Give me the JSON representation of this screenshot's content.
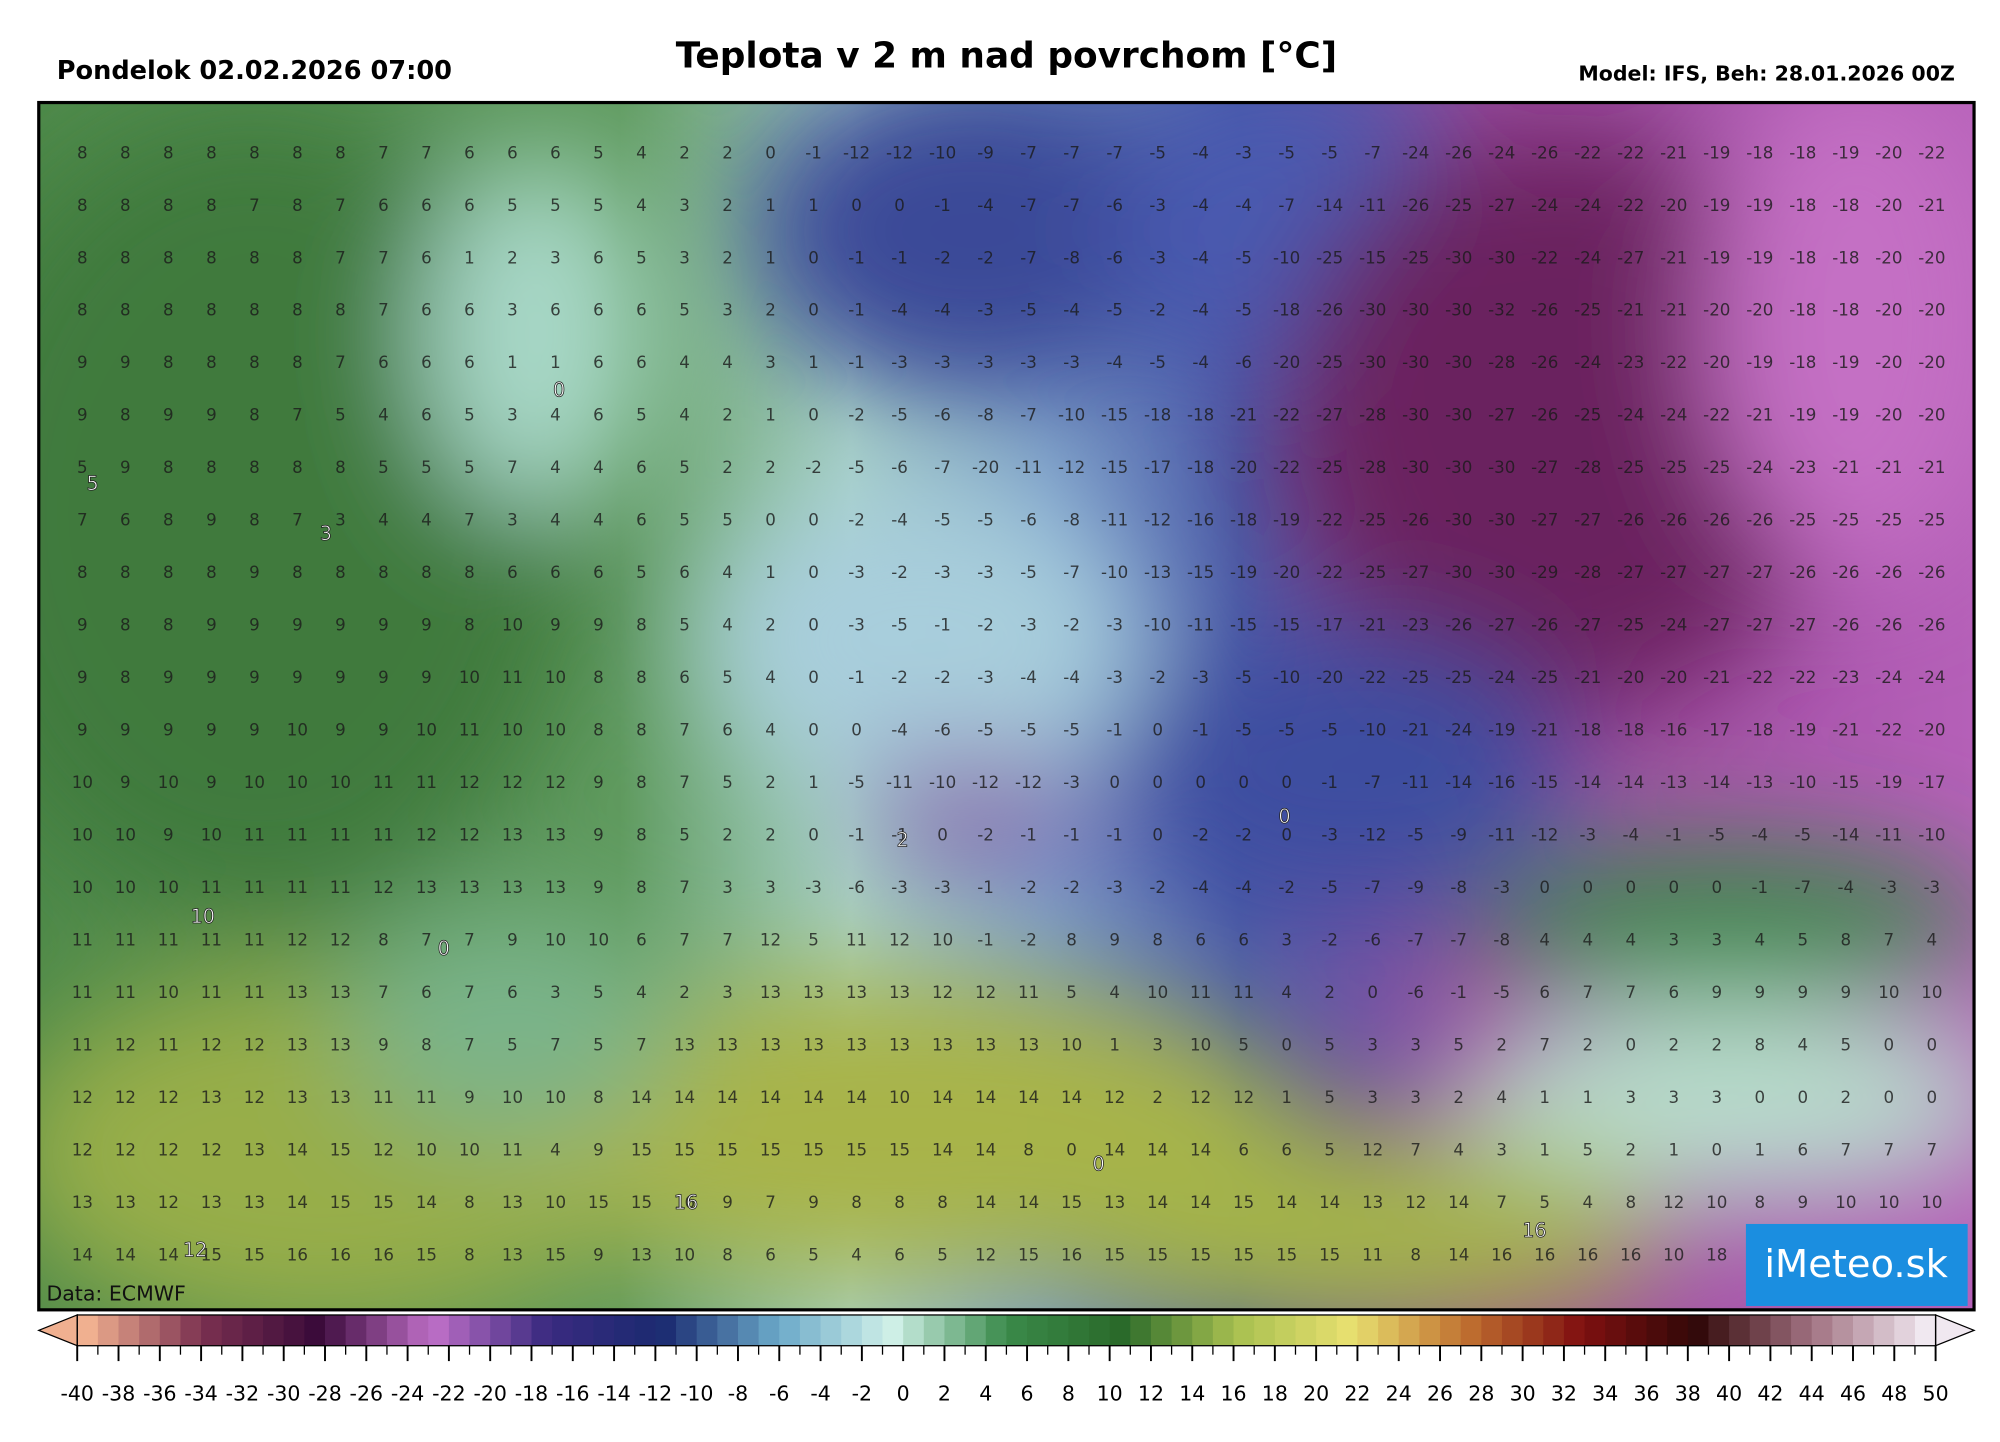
{
  "header": {
    "date": "Pondelok 02.02.2026 07:00",
    "title": "Teplota v 2 m nad povrchom [°C]",
    "model": "Model: IFS, Beh: 28.01.2026 00Z"
  },
  "map": {
    "source": "Data: ECMWF",
    "logo": "iMeteo.sk",
    "grid": [
      [
        8,
        8,
        8,
        8,
        8,
        8,
        8,
        7,
        7,
        6,
        6,
        6,
        5,
        4,
        2,
        2,
        0,
        -1,
        -12,
        -12,
        -10,
        -9,
        -7,
        -7,
        -7,
        -5,
        -4,
        -3,
        -5,
        -5,
        -7,
        -24,
        -26,
        -24,
        -26,
        -22,
        -22,
        -21,
        -19,
        -18,
        -18,
        -19,
        -20,
        -22
      ],
      [
        8,
        8,
        8,
        8,
        7,
        8,
        7,
        6,
        6,
        6,
        5,
        5,
        5,
        4,
        3,
        2,
        1,
        1,
        0,
        0,
        -1,
        -4,
        -7,
        -7,
        -6,
        -3,
        -4,
        -4,
        -7,
        -14,
        -11,
        -26,
        -25,
        -27,
        -24,
        -24,
        -22,
        -20,
        -19,
        -19,
        -18,
        -18,
        -20,
        -21
      ],
      [
        8,
        8,
        8,
        8,
        8,
        8,
        7,
        7,
        6,
        1,
        2,
        3,
        6,
        5,
        3,
        2,
        1,
        0,
        -1,
        -1,
        -2,
        -2,
        -7,
        -8,
        -6,
        -3,
        -4,
        -5,
        -10,
        -25,
        -15,
        -25,
        -30,
        -30,
        -22,
        -24,
        -27,
        -21,
        -19,
        -19,
        -18,
        -18,
        -20,
        -20
      ],
      [
        8,
        8,
        8,
        8,
        8,
        8,
        8,
        7,
        6,
        6,
        3,
        6,
        6,
        6,
        5,
        3,
        2,
        0,
        -1,
        -4,
        -4,
        -3,
        -5,
        -4,
        -5,
        -2,
        -4,
        -5,
        -18,
        -26,
        -30,
        -30,
        -30,
        -32,
        -26,
        -25,
        -21,
        -21,
        -20,
        -20,
        -18,
        -18,
        -20,
        -20
      ],
      [
        9,
        9,
        8,
        8,
        8,
        8,
        7,
        6,
        6,
        6,
        1,
        1,
        6,
        6,
        4,
        4,
        3,
        1,
        -1,
        -3,
        -3,
        -3,
        -3,
        -3,
        -4,
        -5,
        -4,
        -6,
        -20,
        -25,
        -30,
        -30,
        -30,
        -28,
        -26,
        -24,
        -23,
        -22,
        -20,
        -19,
        -18,
        -19,
        -20,
        -20
      ],
      [
        9,
        8,
        9,
        9,
        8,
        7,
        5,
        4,
        6,
        5,
        3,
        4,
        6,
        5,
        4,
        2,
        1,
        0,
        -2,
        -5,
        -6,
        -8,
        -7,
        -10,
        -15,
        -18,
        -18,
        -21,
        -22,
        -27,
        -28,
        -30,
        -30,
        -27,
        -26,
        -25,
        -24,
        -24,
        -22,
        -21,
        -19,
        -19,
        -20,
        -20
      ],
      [
        5,
        9,
        8,
        8,
        8,
        8,
        8,
        5,
        5,
        5,
        7,
        4,
        4,
        6,
        5,
        2,
        2,
        -2,
        -5,
        -6,
        -7,
        -20,
        -11,
        -12,
        -15,
        -17,
        -18,
        -20,
        -22,
        -25,
        -28,
        -30,
        -30,
        -30,
        -27,
        -28,
        -25,
        -25,
        -25,
        -24,
        -23,
        -21,
        -21,
        -21
      ],
      [
        7,
        6,
        8,
        9,
        8,
        7,
        3,
        4,
        4,
        7,
        3,
        4,
        4,
        6,
        5,
        5,
        0,
        0,
        -2,
        -4,
        -5,
        -5,
        -6,
        -8,
        -11,
        -12,
        -16,
        -18,
        -19,
        -22,
        -25,
        -26,
        -30,
        -30,
        -27,
        -27,
        -26,
        -26,
        -26,
        -26,
        -25,
        -25,
        -25,
        -25
      ],
      [
        8,
        8,
        8,
        8,
        9,
        8,
        8,
        8,
        8,
        8,
        6,
        6,
        6,
        5,
        6,
        4,
        1,
        0,
        -3,
        -2,
        -3,
        -3,
        -5,
        -7,
        -10,
        -13,
        -15,
        -19,
        -20,
        -22,
        -25,
        -27,
        -30,
        -30,
        -29,
        -28,
        -27,
        -27,
        -27,
        -27,
        -26,
        -26,
        -26,
        -26
      ],
      [
        9,
        8,
        8,
        9,
        9,
        9,
        9,
        9,
        9,
        8,
        10,
        9,
        9,
        8,
        5,
        4,
        2,
        0,
        -3,
        -5,
        -1,
        -2,
        -3,
        -2,
        -3,
        -10,
        -11,
        -15,
        -15,
        -17,
        -21,
        -23,
        -26,
        -27,
        -26,
        -27,
        -25,
        -24,
        -27,
        -27,
        -27,
        -26,
        -26,
        -26
      ],
      [
        9,
        8,
        9,
        9,
        9,
        9,
        9,
        9,
        9,
        10,
        11,
        10,
        8,
        8,
        6,
        5,
        4,
        0,
        -1,
        -2,
        -2,
        -3,
        -4,
        -4,
        -3,
        -2,
        -3,
        -5,
        -10,
        -20,
        -22,
        -25,
        -25,
        -24,
        -25,
        -21,
        -20,
        -20,
        -21,
        -22,
        -22,
        -23,
        -24,
        -24
      ],
      [
        9,
        9,
        9,
        9,
        9,
        10,
        9,
        9,
        10,
        11,
        10,
        10,
        8,
        8,
        7,
        6,
        4,
        0,
        0,
        -4,
        -6,
        -5,
        -5,
        -5,
        -1,
        0,
        -1,
        -5,
        -5,
        -5,
        -10,
        -21,
        -24,
        -19,
        -21,
        -18,
        -18,
        -16,
        -17,
        -18,
        -19,
        -21,
        -22,
        -20
      ],
      [
        10,
        9,
        10,
        9,
        10,
        10,
        10,
        11,
        11,
        12,
        12,
        12,
        9,
        8,
        7,
        5,
        2,
        1,
        -5,
        -11,
        -10,
        -12,
        -12,
        -3,
        0,
        0,
        0,
        0,
        0,
        -1,
        -7,
        -11,
        -14,
        -16,
        -15,
        -14,
        -14,
        -13,
        -14,
        -13,
        -10,
        -15,
        -19,
        -17
      ],
      [
        10,
        10,
        9,
        10,
        11,
        11,
        11,
        11,
        12,
        12,
        13,
        13,
        9,
        8,
        5,
        2,
        2,
        0,
        -1,
        -1,
        0,
        -2,
        -1,
        -1,
        -1,
        0,
        -2,
        -2,
        0,
        -3,
        -12,
        -5,
        -9,
        -11,
        -12,
        -3,
        -4,
        -1,
        -5,
        -4,
        -5,
        -14,
        -11,
        -10
      ],
      [
        10,
        10,
        10,
        11,
        11,
        11,
        11,
        12,
        13,
        13,
        13,
        13,
        9,
        8,
        7,
        3,
        3,
        -3,
        -6,
        -3,
        -3,
        -1,
        -2,
        -2,
        -3,
        -2,
        -4,
        -4,
        -2,
        -5,
        -7,
        -9,
        -8,
        -3,
        0,
        0,
        0,
        0,
        0,
        -1,
        -7,
        -4,
        -3,
        -3
      ],
      [
        11,
        11,
        11,
        11,
        11,
        12,
        12,
        8,
        7,
        7,
        9,
        10,
        10,
        6,
        7,
        7,
        12,
        5,
        11,
        12,
        10,
        -1,
        -2,
        8,
        9,
        8,
        6,
        6,
        3,
        -2,
        -6,
        -7,
        -7,
        -8,
        4,
        4,
        4,
        3,
        3,
        4,
        5,
        8,
        7,
        4
      ],
      [
        11,
        11,
        10,
        11,
        11,
        13,
        13,
        7,
        6,
        7,
        6,
        3,
        5,
        4,
        2,
        3,
        13,
        13,
        13,
        13,
        12,
        12,
        11,
        5,
        4,
        10,
        11,
        11,
        4,
        2,
        0,
        -6,
        -1,
        -5,
        6,
        7,
        7,
        6,
        9,
        9,
        9,
        9,
        10,
        10
      ],
      [
        11,
        12,
        11,
        12,
        12,
        13,
        13,
        9,
        8,
        7,
        5,
        7,
        5,
        7,
        13,
        13,
        13,
        13,
        13,
        13,
        13,
        13,
        13,
        10,
        1,
        3,
        10,
        5,
        0,
        5,
        3,
        3,
        5,
        2,
        7,
        2,
        0,
        2,
        2,
        8,
        4,
        5,
        0,
        0
      ],
      [
        12,
        12,
        12,
        13,
        12,
        13,
        13,
        11,
        11,
        9,
        10,
        10,
        8,
        14,
        14,
        14,
        14,
        14,
        14,
        10,
        14,
        14,
        14,
        14,
        12,
        2,
        12,
        12,
        1,
        5,
        3,
        3,
        2,
        4,
        1,
        1,
        3,
        3,
        3,
        0,
        0,
        2,
        0,
        0
      ],
      [
        12,
        12,
        12,
        12,
        13,
        14,
        15,
        12,
        10,
        10,
        11,
        4,
        9,
        15,
        15,
        15,
        15,
        15,
        15,
        15,
        14,
        14,
        8,
        0,
        14,
        14,
        14,
        6,
        6,
        5,
        12,
        7,
        4,
        3,
        1,
        5,
        2,
        1,
        0,
        1,
        6,
        7,
        7,
        7
      ],
      [
        13,
        13,
        12,
        13,
        13,
        14,
        15,
        15,
        14,
        8,
        13,
        10,
        15,
        15,
        16,
        9,
        7,
        9,
        8,
        8,
        8,
        14,
        14,
        15,
        13,
        14,
        14,
        15,
        14,
        14,
        13,
        12,
        14,
        7,
        5,
        4,
        8,
        12,
        10,
        8,
        9,
        10,
        10,
        10
      ],
      [
        14,
        14,
        14,
        15,
        15,
        16,
        16,
        16,
        15,
        8,
        13,
        15,
        9,
        13,
        10,
        8,
        6,
        5,
        4,
        6,
        5,
        12,
        15,
        16,
        15,
        15,
        15,
        15,
        15,
        15,
        11,
        8,
        14,
        16,
        16,
        16,
        16,
        10,
        18
      ]
    ],
    "contour_labels": [
      0,
      5,
      3,
      10,
      0,
      2,
      0,
      16,
      0,
      16,
      12
    ]
  },
  "colorbar": {
    "ticks": [
      -40,
      -38,
      -36,
      -34,
      -32,
      -30,
      -28,
      -26,
      -24,
      -22,
      -20,
      -18,
      -16,
      -14,
      -12,
      -10,
      -8,
      -6,
      -4,
      -2,
      0,
      2,
      4,
      6,
      8,
      10,
      12,
      14,
      16,
      18,
      20,
      22,
      24,
      26,
      28,
      30,
      32,
      34,
      36,
      38,
      40,
      42,
      44,
      46,
      48,
      50
    ],
    "colors": [
      "#f0b090",
      "#7a3050",
      "#3a0a3a",
      "#c070c8",
      "#3a2a80",
      "#1a2a70",
      "#6aa8c8",
      "#d0f0e8",
      "#3a8a4a",
      "#2a6a2a",
      "#a8c050",
      "#e8e070",
      "#c07030",
      "#801010",
      "#300808",
      "#a07080",
      "#f0e8f0"
    ]
  }
}
